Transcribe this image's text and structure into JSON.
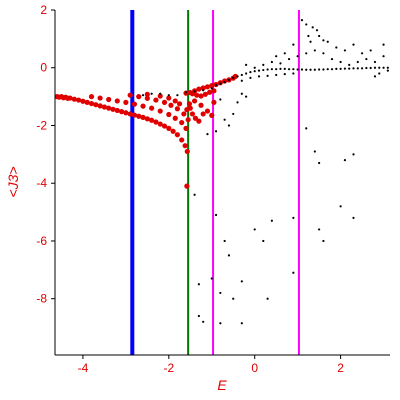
{
  "chart_data": {
    "type": "scatter",
    "title": "",
    "xlabel": "E",
    "ylabel": "<J3>",
    "xlim": [
      -4.65,
      3.15
    ],
    "ylim": [
      -9.95,
      2.0
    ],
    "x_ticks": [
      -4,
      -2,
      0,
      2
    ],
    "x_tick_labels": [
      "-4",
      "-2",
      "0",
      "2"
    ],
    "y_ticks": [
      2,
      0,
      -2,
      -4,
      -6,
      -8
    ],
    "y_tick_labels": [
      "2",
      "0",
      "-2",
      "-4",
      "-6",
      "-8"
    ],
    "grid": false,
    "colors": {
      "axes": "#000000",
      "labels": "#e00000",
      "red_points": "#e00000",
      "black_points": "#000000",
      "line_blue": "#0000ff",
      "line_green": "#007700",
      "line_magenta": "#ff00ff"
    },
    "vertical_lines": [
      {
        "x": -2.85,
        "color": "#0000ff",
        "style": "thick"
      },
      {
        "x": -1.55,
        "color": "#007700",
        "style": "medium"
      },
      {
        "x": -0.97,
        "color": "#ff00ff",
        "style": "medium"
      },
      {
        "x": 1.03,
        "color": "#ff00ff",
        "style": "medium"
      }
    ],
    "series": [
      {
        "color": "#e00000",
        "points": [
          [
            -4.6,
            -1.0
          ],
          [
            -4.55,
            -1.02
          ],
          [
            -4.5,
            -1.0
          ],
          [
            -4.45,
            -1.04
          ],
          [
            -4.4,
            -1.02
          ],
          [
            -4.35,
            -1.06
          ],
          [
            -4.3,
            -1.05
          ],
          [
            -4.2,
            -1.09
          ],
          [
            -4.1,
            -1.12
          ],
          [
            -4.0,
            -1.16
          ],
          [
            -3.9,
            -1.2
          ],
          [
            -3.8,
            -1.24
          ],
          [
            -3.7,
            -1.28
          ],
          [
            -3.6,
            -1.32
          ],
          [
            -3.5,
            -1.36
          ],
          [
            -3.4,
            -1.4
          ],
          [
            -3.3,
            -1.44
          ],
          [
            -3.2,
            -1.48
          ],
          [
            -3.1,
            -1.52
          ],
          [
            -3.0,
            -1.56
          ],
          [
            -2.9,
            -1.6
          ],
          [
            -2.8,
            -1.64
          ],
          [
            -2.7,
            -1.68
          ],
          [
            -2.6,
            -1.72
          ],
          [
            -2.5,
            -1.77
          ],
          [
            -2.4,
            -1.82
          ],
          [
            -2.3,
            -1.88
          ],
          [
            -2.2,
            -1.95
          ],
          [
            -2.1,
            -2.02
          ],
          [
            -2.0,
            -2.1
          ],
          [
            -1.9,
            -2.2
          ],
          [
            -1.8,
            -2.32
          ],
          [
            -1.7,
            -2.5
          ],
          [
            -1.62,
            -2.7
          ],
          [
            -1.57,
            -2.9
          ],
          [
            -3.8,
            -1.0
          ],
          [
            -3.6,
            -1.05
          ],
          [
            -3.4,
            -1.1
          ],
          [
            -3.2,
            -1.15
          ],
          [
            -3.0,
            -1.2
          ],
          [
            -2.8,
            -1.26
          ],
          [
            -2.6,
            -1.33
          ],
          [
            -2.4,
            -1.4
          ],
          [
            -2.2,
            -1.5
          ],
          [
            -2.0,
            -1.62
          ],
          [
            -1.85,
            -1.75
          ],
          [
            -1.7,
            -1.9
          ],
          [
            -1.6,
            -2.1
          ],
          [
            -2.9,
            -0.95
          ],
          [
            -2.7,
            -1.0
          ],
          [
            -2.5,
            -1.06
          ],
          [
            -2.3,
            -1.12
          ],
          [
            -2.1,
            -1.2
          ],
          [
            -1.95,
            -1.3
          ],
          [
            -1.8,
            -1.42
          ],
          [
            -1.65,
            -1.6
          ],
          [
            -1.55,
            -1.8
          ],
          [
            -2.5,
            -0.92
          ],
          [
            -2.2,
            -0.98
          ],
          [
            -2.0,
            -1.05
          ],
          [
            -1.85,
            -1.15
          ],
          [
            -1.75,
            -1.25
          ],
          [
            -1.6,
            -0.88
          ],
          [
            -1.5,
            -0.86
          ],
          [
            -1.4,
            -0.8
          ],
          [
            -1.3,
            -0.74
          ],
          [
            -1.2,
            -0.7
          ],
          [
            -1.1,
            -0.66
          ],
          [
            -1.0,
            -0.62
          ],
          [
            -0.9,
            -0.58
          ],
          [
            -0.8,
            -0.52
          ],
          [
            -0.7,
            -0.46
          ],
          [
            -0.6,
            -0.42
          ],
          [
            -0.5,
            -0.36
          ],
          [
            -0.45,
            -0.3
          ],
          [
            -1.45,
            -0.9
          ],
          [
            -1.35,
            -0.95
          ],
          [
            -1.25,
            -0.98
          ],
          [
            -1.15,
            -0.92
          ],
          [
            -1.05,
            -0.85
          ],
          [
            -0.95,
            -0.8
          ],
          [
            -1.5,
            -1.4
          ],
          [
            -1.45,
            -1.6
          ],
          [
            -1.38,
            -1.75
          ],
          [
            -1.3,
            -1.85
          ],
          [
            -1.2,
            -1.6
          ],
          [
            -1.1,
            -1.5
          ],
          [
            -1.0,
            -1.65
          ],
          [
            -0.95,
            -1.2
          ],
          [
            -1.25,
            -1.3
          ],
          [
            -1.4,
            -1.15
          ],
          [
            -1.52,
            -1.25
          ],
          [
            -1.58,
            -1.45
          ],
          [
            -1.58,
            -4.1
          ]
        ]
      },
      {
        "color": "#000000",
        "points": [
          [
            -2.6,
            -0.95
          ],
          [
            -2.4,
            -0.9
          ],
          [
            -2.2,
            -0.9
          ],
          [
            -2.0,
            -0.95
          ],
          [
            -1.8,
            -0.95
          ],
          [
            -1.6,
            -0.85
          ],
          [
            -1.4,
            -0.82
          ],
          [
            -1.2,
            -0.78
          ],
          [
            -1.0,
            -0.72
          ],
          [
            -0.9,
            -0.6
          ],
          [
            -0.8,
            -0.55
          ],
          [
            -0.7,
            -0.5
          ],
          [
            -0.6,
            -0.42
          ],
          [
            -0.5,
            -0.35
          ],
          [
            -0.4,
            -0.3
          ],
          [
            -0.3,
            -0.25
          ],
          [
            -0.2,
            -0.2
          ],
          [
            -0.1,
            -0.15
          ],
          [
            0.0,
            -0.12
          ],
          [
            0.1,
            -0.1
          ],
          [
            0.2,
            -0.08
          ],
          [
            0.3,
            -0.06
          ],
          [
            0.4,
            -0.05
          ],
          [
            0.5,
            -0.05
          ],
          [
            0.6,
            -0.04
          ],
          [
            0.7,
            -0.04
          ],
          [
            0.8,
            -0.05
          ],
          [
            0.9,
            -0.05
          ],
          [
            1.0,
            -0.06
          ],
          [
            1.1,
            -0.06
          ],
          [
            1.2,
            -0.07
          ],
          [
            1.3,
            -0.07
          ],
          [
            1.4,
            -0.07
          ],
          [
            1.5,
            -0.06
          ],
          [
            1.6,
            -0.06
          ],
          [
            1.7,
            -0.05
          ],
          [
            1.8,
            -0.05
          ],
          [
            1.9,
            -0.04
          ],
          [
            2.0,
            -0.04
          ],
          [
            2.1,
            -0.03
          ],
          [
            2.2,
            -0.03
          ],
          [
            2.3,
            -0.02
          ],
          [
            2.4,
            -0.02
          ],
          [
            2.5,
            -0.02
          ],
          [
            2.6,
            -0.01
          ],
          [
            2.7,
            -0.01
          ],
          [
            2.8,
            0.0
          ],
          [
            2.9,
            0.0
          ],
          [
            3.0,
            0.0
          ],
          [
            3.1,
            0.0
          ],
          [
            -0.3,
            -0.45
          ],
          [
            -0.1,
            -0.35
          ],
          [
            0.1,
            -0.3
          ],
          [
            0.3,
            -0.28
          ],
          [
            0.5,
            -0.25
          ],
          [
            0.7,
            -0.22
          ],
          [
            0.9,
            -0.2
          ],
          [
            -0.2,
            0.1
          ],
          [
            0.0,
            0.0
          ],
          [
            0.2,
            0.1
          ],
          [
            0.4,
            0.2
          ],
          [
            0.6,
            0.15
          ],
          [
            0.8,
            0.3
          ],
          [
            1.0,
            0.4
          ],
          [
            1.2,
            0.5
          ],
          [
            1.4,
            0.6
          ],
          [
            1.6,
            0.5
          ],
          [
            1.8,
            0.3
          ],
          [
            2.0,
            0.2
          ],
          [
            2.2,
            0.1
          ],
          [
            2.4,
            0.2
          ],
          [
            2.6,
            0.3
          ],
          [
            2.8,
            0.2
          ],
          [
            3.0,
            0.4
          ],
          [
            1.1,
            1.65
          ],
          [
            1.2,
            1.5
          ],
          [
            1.25,
            1.1
          ],
          [
            1.35,
            1.4
          ],
          [
            1.45,
            1.3
          ],
          [
            1.5,
            1.1
          ],
          [
            1.7,
            0.9
          ],
          [
            1.9,
            0.7
          ],
          [
            2.1,
            0.6
          ],
          [
            2.3,
            0.8
          ],
          [
            2.5,
            0.5
          ],
          [
            2.7,
            0.6
          ],
          [
            3.0,
            0.8
          ],
          [
            0.9,
            0.8
          ],
          [
            0.7,
            0.5
          ],
          [
            0.5,
            0.4
          ],
          [
            1.3,
            0.9
          ],
          [
            1.6,
            0.95
          ],
          [
            2.8,
            -0.3
          ],
          [
            2.9,
            -0.2
          ],
          [
            3.1,
            -0.1
          ],
          [
            -0.5,
            -1.6
          ],
          [
            -0.7,
            -1.8
          ],
          [
            -0.9,
            -2.2
          ],
          [
            -1.1,
            -2.3
          ],
          [
            -0.6,
            -2.0
          ],
          [
            -0.4,
            -1.2
          ],
          [
            -0.2,
            -1.0
          ],
          [
            -0.8,
            -1.1
          ],
          [
            -0.3,
            -0.9
          ],
          [
            1.2,
            -2.1
          ],
          [
            1.4,
            -2.9
          ],
          [
            2.1,
            -3.2
          ],
          [
            2.3,
            -3.0
          ],
          [
            1.5,
            -3.3
          ],
          [
            -1.4,
            -4.4
          ],
          [
            -0.9,
            -5.1
          ],
          [
            0.0,
            -5.6
          ],
          [
            0.4,
            -5.3
          ],
          [
            0.9,
            -5.2
          ],
          [
            0.2,
            -6.0
          ],
          [
            1.5,
            -5.6
          ],
          [
            1.6,
            -6.0
          ],
          [
            2.0,
            -4.8
          ],
          [
            2.3,
            -5.2
          ],
          [
            -0.7,
            -6.0
          ],
          [
            -0.6,
            -6.5
          ],
          [
            -1.0,
            -7.3
          ],
          [
            -0.8,
            -7.8
          ],
          [
            -0.5,
            -8.0
          ],
          [
            -0.3,
            -7.4
          ],
          [
            0.3,
            -8.0
          ],
          [
            0.9,
            -7.1
          ],
          [
            -1.3,
            -8.6
          ],
          [
            -1.2,
            -8.8
          ],
          [
            -0.8,
            -8.85
          ],
          [
            -0.3,
            -8.85
          ],
          [
            -1.3,
            -7.5
          ]
        ]
      }
    ]
  }
}
